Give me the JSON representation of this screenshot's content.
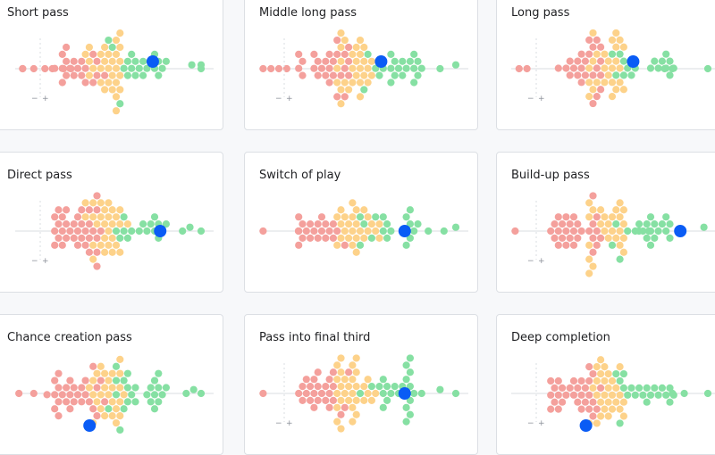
{
  "colors": {
    "low": "#f4a09c",
    "mid": "#fdd28a",
    "high": "#86e0a3",
    "player": "#0a5cf5",
    "axis": "#dadde2"
  },
  "legend": {
    "minus": "−",
    "plus": "+"
  },
  "panels": [
    {
      "title": "Short pass",
      "seed": 11,
      "counts": [
        20,
        28,
        22
      ],
      "player_value": 0.74,
      "row_offset": -0.15,
      "show_legend": true,
      "outliers": [
        0.04,
        0.04,
        0.1,
        0.16,
        0.2,
        0.26,
        0.3,
        1.0,
        1.0,
        0.95
      ]
    },
    {
      "title": "Middle long pass",
      "seed": 23,
      "counts": [
        26,
        28,
        22
      ],
      "player_value": 0.62,
      "row_offset": -0.15,
      "show_legend": true,
      "outliers": [
        0.02,
        0.06,
        0.1,
        0.14,
        0.92,
        1.0
      ]
    },
    {
      "title": "Long pass",
      "seed": 37,
      "counts": [
        24,
        26,
        18
      ],
      "player_value": 0.62,
      "row_offset": -0.25,
      "show_legend": true,
      "outliers": [
        0.04,
        0.08,
        0.78,
        0.82,
        1.0
      ]
    },
    {
      "title": "Direct pass",
      "seed": 41,
      "counts": [
        34,
        28,
        16
      ],
      "player_value": 0.78,
      "row_offset": 0.0,
      "show_legend": true,
      "outliers": [
        0.9,
        0.94,
        1.0
      ]
    },
    {
      "title": "Switch of play",
      "seed": 53,
      "counts": [
        20,
        26,
        18
      ],
      "player_value": 0.74,
      "row_offset": 0.0,
      "show_legend": false,
      "outliers": [
        0.02,
        0.2,
        0.2,
        0.86,
        0.94,
        1.0
      ]
    },
    {
      "title": "Build-up pass",
      "seed": 67,
      "counts": [
        28,
        26,
        20
      ],
      "player_value": 0.86,
      "row_offset": 0.0,
      "show_legend": true,
      "outliers": [
        0.02,
        0.65,
        0.7,
        0.98
      ]
    },
    {
      "title": "Chance creation pass",
      "seed": 79,
      "counts": [
        28,
        26,
        24
      ],
      "player_value": 0.4,
      "row_offset": 0.7,
      "show_legend": false,
      "outliers": [
        0.02,
        0.1,
        0.92,
        0.96,
        1.0
      ]
    },
    {
      "title": "Pass into final third",
      "seed": 83,
      "counts": [
        26,
        30,
        24
      ],
      "player_value": 0.74,
      "row_offset": 0.0,
      "show_legend": true,
      "outliers": [
        0.02,
        0.92,
        1.0
      ]
    },
    {
      "title": "Deep completion",
      "seed": 97,
      "counts": [
        30,
        28,
        20
      ],
      "player_value": 0.38,
      "row_offset": 0.9,
      "show_legend": true,
      "outliers": [
        0.82,
        0.88,
        1.0
      ]
    }
  ],
  "chart_data": [
    {
      "type": "scatter",
      "title": "Short pass",
      "series": [
        {
          "values": [
            0.74
          ]
        }
      ]
    },
    {
      "type": "scatter",
      "title": "Middle long pass",
      "series": [
        {
          "values": [
            0.62
          ]
        }
      ]
    },
    {
      "type": "scatter",
      "title": "Long pass",
      "series": [
        {
          "values": [
            0.62
          ]
        }
      ]
    },
    {
      "type": "scatter",
      "title": "Direct pass",
      "series": [
        {
          "values": [
            0.78
          ]
        }
      ]
    },
    {
      "type": "scatter",
      "title": "Switch of play",
      "series": [
        {
          "values": [
            0.74
          ]
        }
      ]
    },
    {
      "type": "scatter",
      "title": "Build-up pass",
      "series": [
        {
          "values": [
            0.86
          ]
        }
      ]
    },
    {
      "type": "scatter",
      "title": "Chance creation pass",
      "series": [
        {
          "values": [
            0.4
          ]
        }
      ]
    },
    {
      "type": "scatter",
      "title": "Pass into final third",
      "series": [
        {
          "values": [
            0.74
          ]
        }
      ]
    },
    {
      "type": "scatter",
      "title": "Deep completion",
      "series": [
        {
          "values": [
            0.38
          ]
        }
      ]
    }
  ]
}
